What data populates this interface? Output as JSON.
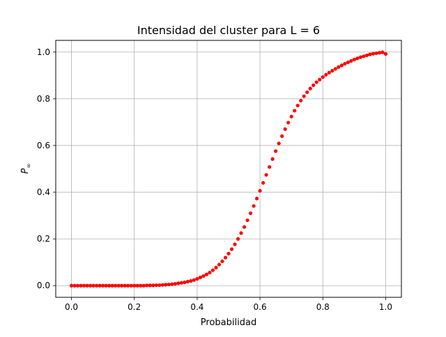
{
  "chart_data": {
    "type": "scatter",
    "title": "Intensidad del cluster para L = 6",
    "xlabel": "Probabilidad",
    "ylabel": "P",
    "ylabel_subscript": "∞",
    "xlim": [
      -0.05,
      1.05
    ],
    "ylim": [
      -0.05,
      1.05
    ],
    "xticks": [
      "0.0",
      "0.2",
      "0.4",
      "0.6",
      "0.8",
      "1.0"
    ],
    "yticks": [
      "0.0",
      "0.2",
      "0.4",
      "0.6",
      "0.8",
      "1.0"
    ],
    "grid": true,
    "marker_color": "#ff0000",
    "series": [
      {
        "x": [
          0.0,
          0.01,
          0.02,
          0.03,
          0.04,
          0.05,
          0.06,
          0.07,
          0.08,
          0.09,
          0.1,
          0.11,
          0.12,
          0.13,
          0.14,
          0.15,
          0.16,
          0.17,
          0.18,
          0.19,
          0.2,
          0.21,
          0.22,
          0.23,
          0.24,
          0.25,
          0.26,
          0.27,
          0.28,
          0.29,
          0.3,
          0.31,
          0.32,
          0.33,
          0.34,
          0.35,
          0.36,
          0.37,
          0.38,
          0.39,
          0.4,
          0.41,
          0.42,
          0.43,
          0.44,
          0.45,
          0.46,
          0.47,
          0.48,
          0.49,
          0.5,
          0.51,
          0.52,
          0.53,
          0.54,
          0.55,
          0.56,
          0.57,
          0.58,
          0.59,
          0.6,
          0.61,
          0.62,
          0.63,
          0.64,
          0.65,
          0.66,
          0.67,
          0.68,
          0.69,
          0.7,
          0.71,
          0.72,
          0.73,
          0.74,
          0.75,
          0.76,
          0.77,
          0.78,
          0.79,
          0.8,
          0.81,
          0.82,
          0.83,
          0.84,
          0.85,
          0.86,
          0.87,
          0.88,
          0.89,
          0.9,
          0.91,
          0.92,
          0.93,
          0.94,
          0.95,
          0.96,
          0.97,
          0.98,
          0.99,
          1.0
        ],
        "y": [
          0.0,
          0.0,
          0.0,
          0.0,
          0.0,
          0.0,
          0.0,
          0.0,
          0.0,
          0.0,
          0.0,
          0.0,
          0.0,
          0.0,
          0.0,
          0.0,
          0.0,
          0.0,
          0.0,
          0.0,
          0.0,
          0.0,
          0.0,
          0.0,
          0.001,
          0.001,
          0.001,
          0.002,
          0.002,
          0.003,
          0.004,
          0.005,
          0.006,
          0.008,
          0.01,
          0.012,
          0.014,
          0.017,
          0.02,
          0.024,
          0.029,
          0.035,
          0.041,
          0.048,
          0.056,
          0.066,
          0.077,
          0.09,
          0.104,
          0.12,
          0.137,
          0.156,
          0.177,
          0.2,
          0.225,
          0.251,
          0.28,
          0.31,
          0.341,
          0.373,
          0.406,
          0.44,
          0.474,
          0.508,
          0.542,
          0.576,
          0.609,
          0.64,
          0.67,
          0.698,
          0.724,
          0.749,
          0.771,
          0.792,
          0.811,
          0.828,
          0.844,
          0.858,
          0.871,
          0.882,
          0.893,
          0.903,
          0.912,
          0.92,
          0.928,
          0.936,
          0.943,
          0.95,
          0.956,
          0.962,
          0.968,
          0.973,
          0.978,
          0.982,
          0.986,
          0.99,
          0.993,
          0.995,
          0.997,
          0.999,
          0.992
        ]
      }
    ]
  }
}
